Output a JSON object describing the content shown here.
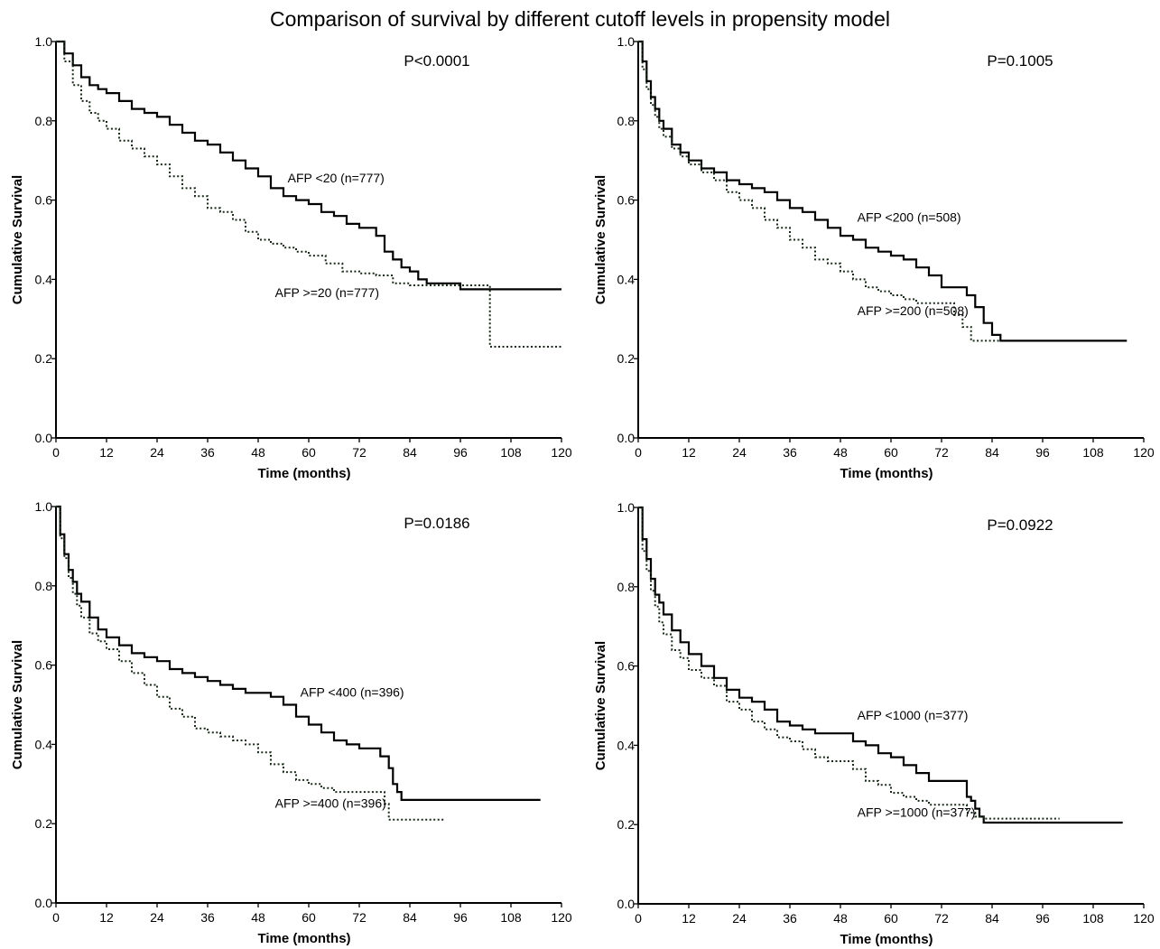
{
  "title": "Comparison of survival by different cutoff levels in propensity model",
  "chart_data": [
    {
      "type": "line",
      "xlabel": "Time (months)",
      "ylabel": "Cumulative Survival",
      "xlim": [
        0,
        120
      ],
      "ylim": [
        0.0,
        1.0
      ],
      "xticks": [
        "0",
        "12",
        "24",
        "36",
        "48",
        "60",
        "72",
        "84",
        "96",
        "108",
        "120"
      ],
      "yticks": [
        "0.0",
        "0.2",
        "0.4",
        "0.6",
        "0.8",
        "1.0"
      ],
      "annotation": "P<0.0001",
      "grid": false,
      "series": [
        {
          "name": "AFP <20 (n=777)",
          "style": "solid",
          "x": [
            0,
            2,
            4,
            6,
            8,
            10,
            12,
            15,
            18,
            21,
            24,
            27,
            30,
            33,
            36,
            39,
            42,
            45,
            48,
            51,
            54,
            57,
            60,
            63,
            66,
            69,
            72,
            74,
            76,
            78,
            80,
            82,
            84,
            86,
            88,
            90,
            94,
            96,
            100,
            105,
            110,
            115,
            120
          ],
          "y": [
            1.0,
            0.97,
            0.94,
            0.91,
            0.89,
            0.88,
            0.87,
            0.85,
            0.83,
            0.82,
            0.81,
            0.79,
            0.77,
            0.75,
            0.74,
            0.72,
            0.7,
            0.68,
            0.66,
            0.63,
            0.61,
            0.6,
            0.59,
            0.57,
            0.56,
            0.54,
            0.53,
            0.53,
            0.51,
            0.47,
            0.45,
            0.43,
            0.42,
            0.4,
            0.39,
            0.39,
            0.39,
            0.375,
            0.375,
            0.375,
            0.375,
            0.375,
            0.375
          ]
        },
        {
          "name": "AFP >=20 (n=777)",
          "style": "dotted",
          "x": [
            0,
            2,
            4,
            6,
            8,
            10,
            12,
            15,
            18,
            21,
            24,
            27,
            30,
            33,
            36,
            39,
            42,
            45,
            48,
            51,
            54,
            57,
            60,
            64,
            68,
            72,
            76,
            80,
            84,
            90,
            96,
            100,
            103,
            103.01,
            110,
            120
          ],
          "y": [
            1.0,
            0.95,
            0.89,
            0.85,
            0.82,
            0.8,
            0.78,
            0.75,
            0.73,
            0.71,
            0.69,
            0.66,
            0.63,
            0.61,
            0.58,
            0.57,
            0.55,
            0.52,
            0.5,
            0.49,
            0.48,
            0.47,
            0.46,
            0.44,
            0.42,
            0.415,
            0.41,
            0.39,
            0.385,
            0.385,
            0.385,
            0.385,
            0.385,
            0.23,
            0.23,
            0.23
          ]
        }
      ],
      "labels": [
        {
          "series": 0,
          "x": 55,
          "y": 0.645
        },
        {
          "series": 1,
          "x": 52,
          "y": 0.355
        }
      ]
    },
    {
      "type": "line",
      "xlabel": "Time (months)",
      "ylabel": "Cumulative Survival",
      "xlim": [
        0,
        120
      ],
      "ylim": [
        0.0,
        1.0
      ],
      "xticks": [
        "0",
        "12",
        "24",
        "36",
        "48",
        "60",
        "72",
        "84",
        "96",
        "108",
        "120"
      ],
      "yticks": [
        "0.0",
        "0.2",
        "0.4",
        "0.6",
        "0.8",
        "1.0"
      ],
      "annotation": "P=0.1005",
      "grid": false,
      "series": [
        {
          "name": "AFP <200 (n=508)",
          "style": "solid",
          "x": [
            0,
            1,
            2,
            3,
            4,
            5,
            6,
            8,
            10,
            12,
            15,
            18,
            21,
            24,
            27,
            30,
            33,
            36,
            39,
            42,
            45,
            48,
            51,
            54,
            57,
            60,
            63,
            66,
            69,
            72,
            76,
            78,
            80,
            82,
            84,
            86,
            90,
            100,
            110,
            116
          ],
          "y": [
            1.0,
            0.95,
            0.9,
            0.86,
            0.83,
            0.8,
            0.78,
            0.74,
            0.72,
            0.7,
            0.68,
            0.67,
            0.65,
            0.64,
            0.63,
            0.62,
            0.6,
            0.58,
            0.57,
            0.55,
            0.53,
            0.51,
            0.5,
            0.48,
            0.47,
            0.46,
            0.45,
            0.43,
            0.41,
            0.38,
            0.38,
            0.36,
            0.33,
            0.29,
            0.26,
            0.245,
            0.245,
            0.245,
            0.245,
            0.245
          ]
        },
        {
          "name": "AFP >=200 (n=508)",
          "style": "dotted",
          "x": [
            0,
            1,
            2,
            3,
            4,
            5,
            6,
            8,
            10,
            12,
            15,
            18,
            21,
            24,
            27,
            30,
            33,
            36,
            39,
            42,
            45,
            48,
            51,
            54,
            57,
            60,
            63,
            66,
            69,
            72,
            75,
            77,
            79,
            80,
            82,
            84,
            86
          ],
          "y": [
            1.0,
            0.93,
            0.88,
            0.84,
            0.81,
            0.78,
            0.76,
            0.73,
            0.71,
            0.69,
            0.67,
            0.65,
            0.62,
            0.6,
            0.58,
            0.55,
            0.53,
            0.5,
            0.48,
            0.45,
            0.44,
            0.42,
            0.4,
            0.38,
            0.37,
            0.36,
            0.35,
            0.34,
            0.34,
            0.34,
            0.31,
            0.28,
            0.245,
            0.245,
            0.245,
            0.245,
            0.245
          ]
        }
      ],
      "labels": [
        {
          "series": 0,
          "x": 52,
          "y": 0.545
        },
        {
          "series": 1,
          "x": 52,
          "y": 0.31
        }
      ]
    },
    {
      "type": "line",
      "xlabel": "Time (months)",
      "ylabel": "Cumulative Survival",
      "xlim": [
        0,
        120
      ],
      "ylim": [
        0.0,
        1.0
      ],
      "xticks": [
        "0",
        "12",
        "24",
        "36",
        "48",
        "60",
        "72",
        "84",
        "96",
        "108",
        "120"
      ],
      "yticks": [
        "0.0",
        "0.2",
        "0.4",
        "0.6",
        "0.8",
        "1.0"
      ],
      "annotation": "P=0.0186",
      "grid": false,
      "series": [
        {
          "name": "AFP <400 (n=396)",
          "style": "solid",
          "x": [
            0,
            1,
            2,
            3,
            4,
            5,
            6,
            8,
            10,
            12,
            15,
            18,
            21,
            24,
            27,
            30,
            33,
            36,
            39,
            42,
            45,
            48,
            51,
            54,
            57,
            60,
            63,
            66,
            69,
            72,
            75,
            77,
            79,
            80,
            81,
            82,
            84,
            90,
            100,
            110,
            115
          ],
          "y": [
            1.0,
            0.93,
            0.88,
            0.84,
            0.81,
            0.78,
            0.76,
            0.72,
            0.69,
            0.67,
            0.65,
            0.63,
            0.62,
            0.61,
            0.59,
            0.58,
            0.57,
            0.56,
            0.55,
            0.54,
            0.53,
            0.53,
            0.52,
            0.5,
            0.47,
            0.45,
            0.43,
            0.41,
            0.4,
            0.39,
            0.39,
            0.37,
            0.34,
            0.3,
            0.28,
            0.26,
            0.26,
            0.26,
            0.26,
            0.26,
            0.26
          ]
        },
        {
          "name": "AFP >=400 (n=396)",
          "style": "dotted",
          "x": [
            0,
            1,
            2,
            3,
            4,
            5,
            6,
            8,
            10,
            12,
            15,
            18,
            21,
            24,
            27,
            30,
            33,
            36,
            39,
            42,
            45,
            48,
            51,
            54,
            57,
            60,
            63,
            66,
            69,
            72,
            75,
            77,
            78,
            79,
            80,
            85,
            92
          ],
          "y": [
            1.0,
            0.92,
            0.87,
            0.82,
            0.78,
            0.75,
            0.72,
            0.68,
            0.66,
            0.64,
            0.61,
            0.58,
            0.55,
            0.52,
            0.49,
            0.47,
            0.44,
            0.43,
            0.42,
            0.41,
            0.4,
            0.38,
            0.35,
            0.33,
            0.31,
            0.3,
            0.29,
            0.28,
            0.28,
            0.28,
            0.28,
            0.28,
            0.25,
            0.21,
            0.21,
            0.21,
            0.21
          ]
        }
      ],
      "labels": [
        {
          "series": 0,
          "x": 58,
          "y": 0.52
        },
        {
          "series": 1,
          "x": 52,
          "y": 0.24
        }
      ]
    },
    {
      "type": "line",
      "xlabel": "Time (months)",
      "ylabel": "Cumulative Survival",
      "xlim": [
        0,
        120
      ],
      "ylim": [
        0.0,
        1.0
      ],
      "xticks": [
        "0",
        "12",
        "24",
        "36",
        "48",
        "60",
        "72",
        "84",
        "96",
        "108",
        "120"
      ],
      "yticks": [
        "0.0",
        "0.2",
        "0.4",
        "0.6",
        "0.8",
        "1.0"
      ],
      "annotation": "P=0.0922",
      "grid": false,
      "series": [
        {
          "name": "AFP <1000 (n=377)",
          "style": "solid",
          "x": [
            0,
            1,
            2,
            3,
            4,
            5,
            6,
            8,
            10,
            12,
            15,
            18,
            21,
            24,
            27,
            30,
            33,
            36,
            39,
            42,
            45,
            48,
            51,
            54,
            57,
            60,
            63,
            66,
            69,
            72,
            75,
            78,
            79,
            80,
            81,
            82,
            84,
            90,
            100,
            110,
            115
          ],
          "y": [
            1.0,
            0.92,
            0.87,
            0.82,
            0.78,
            0.76,
            0.73,
            0.69,
            0.66,
            0.63,
            0.6,
            0.57,
            0.54,
            0.52,
            0.51,
            0.49,
            0.46,
            0.45,
            0.44,
            0.43,
            0.43,
            0.43,
            0.41,
            0.4,
            0.38,
            0.37,
            0.35,
            0.33,
            0.31,
            0.31,
            0.31,
            0.27,
            0.26,
            0.24,
            0.22,
            0.205,
            0.205,
            0.205,
            0.205,
            0.205,
            0.205
          ]
        },
        {
          "name": "AFP >=1000 (n=377)",
          "style": "dotted",
          "x": [
            0,
            1,
            2,
            3,
            4,
            5,
            6,
            8,
            10,
            12,
            15,
            18,
            21,
            24,
            27,
            30,
            33,
            36,
            39,
            42,
            45,
            48,
            51,
            54,
            57,
            60,
            63,
            66,
            69,
            72,
            75,
            78,
            80,
            82,
            85,
            90,
            100
          ],
          "y": [
            1.0,
            0.89,
            0.84,
            0.79,
            0.75,
            0.71,
            0.68,
            0.64,
            0.62,
            0.59,
            0.57,
            0.55,
            0.51,
            0.49,
            0.46,
            0.44,
            0.42,
            0.41,
            0.39,
            0.37,
            0.36,
            0.36,
            0.34,
            0.31,
            0.3,
            0.28,
            0.27,
            0.26,
            0.25,
            0.25,
            0.25,
            0.23,
            0.22,
            0.215,
            0.215,
            0.215,
            0.215
          ]
        }
      ],
      "labels": [
        {
          "series": 0,
          "x": 52,
          "y": 0.465
        },
        {
          "series": 1,
          "x": 52,
          "y": 0.22
        }
      ]
    }
  ]
}
